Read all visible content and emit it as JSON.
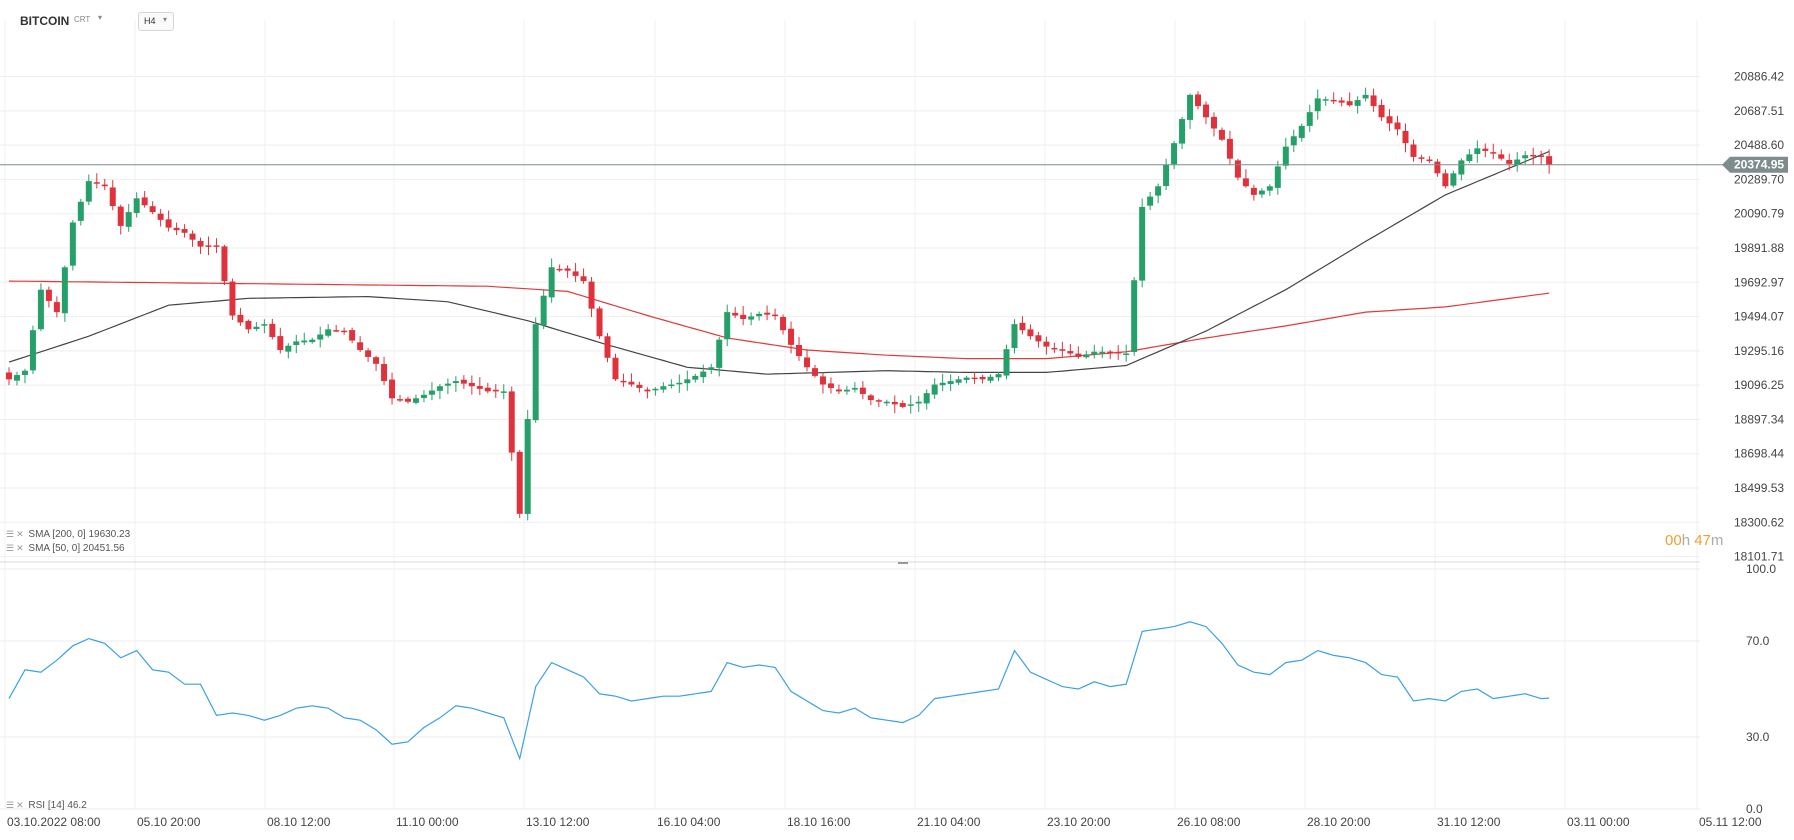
{
  "header": {
    "symbol": "BITCOIN",
    "subtitle": "CRT",
    "timeframe": "H4"
  },
  "indicators": {
    "sma200_label": "SMA [200, 0] 19630.23",
    "sma50_label": "SMA [50, 0] 20451.56",
    "rsi_label": "RSI [14] 46.2"
  },
  "timer": {
    "hours": "00",
    "hours_unit": "h",
    "minutes": "47",
    "minutes_unit": "m"
  },
  "colors": {
    "up": "#26a069",
    "down": "#e0323c",
    "sma200": "#e03a3a",
    "sma50": "#444444",
    "rsi": "#3aa0e8",
    "price_line": "#7f8c8d",
    "price_tag": "#7f8c8d"
  },
  "chart_data": [
    {
      "type": "candlestick",
      "title": "",
      "current_price": 20374.95,
      "current_price_label": "20374.95",
      "y_ticks": [
        "20886.42",
        "20687.51",
        "20488.60",
        "20289.70",
        "20090.79",
        "19891.88",
        "19692.97",
        "19494.07",
        "19295.16",
        "19096.25",
        "18897.34",
        "18698.44",
        "18499.53",
        "18300.62",
        "18101.71"
      ],
      "x_ticks": [
        "03.10.2022  08:00",
        "05.10  20:00",
        "08.10  12:00",
        "11.10  00:00",
        "13.10  12:00",
        "16.10  04:00",
        "18.10  16:00",
        "21.10  04:00",
        "23.10  20:00",
        "26.10  08:00",
        "28.10  20:00",
        "31.10  12:00",
        "03.11  00:00",
        "05.11  12:00"
      ],
      "ylim": [
        18101.71,
        20985.88
      ],
      "anchors": [
        {
          "i": 0,
          "p": 19130
        },
        {
          "i": 2,
          "p": 19180
        },
        {
          "i": 4,
          "p": 19650
        },
        {
          "i": 6,
          "p": 19520
        },
        {
          "i": 8,
          "p": 20040
        },
        {
          "i": 10,
          "p": 20280
        },
        {
          "i": 12,
          "p": 20250
        },
        {
          "i": 14,
          "p": 20020
        },
        {
          "i": 16,
          "p": 20180
        },
        {
          "i": 18,
          "p": 20100
        },
        {
          "i": 20,
          "p": 20010
        },
        {
          "i": 22,
          "p": 19980
        },
        {
          "i": 24,
          "p": 19900
        },
        {
          "i": 26,
          "p": 19900
        },
        {
          "i": 28,
          "p": 19500
        },
        {
          "i": 30,
          "p": 19420
        },
        {
          "i": 32,
          "p": 19450
        },
        {
          "i": 34,
          "p": 19300
        },
        {
          "i": 36,
          "p": 19350
        },
        {
          "i": 38,
          "p": 19360
        },
        {
          "i": 40,
          "p": 19420
        },
        {
          "i": 42,
          "p": 19410
        },
        {
          "i": 44,
          "p": 19300
        },
        {
          "i": 46,
          "p": 19220
        },
        {
          "i": 48,
          "p": 19020
        },
        {
          "i": 50,
          "p": 19000
        },
        {
          "i": 52,
          "p": 19040
        },
        {
          "i": 54,
          "p": 19090
        },
        {
          "i": 56,
          "p": 19120
        },
        {
          "i": 58,
          "p": 19090
        },
        {
          "i": 60,
          "p": 19060
        },
        {
          "i": 62,
          "p": 19060
        },
        {
          "i": 64,
          "p": 18350
        },
        {
          "i": 66,
          "p": 19450
        },
        {
          "i": 68,
          "p": 19780
        },
        {
          "i": 70,
          "p": 19760
        },
        {
          "i": 72,
          "p": 19700
        },
        {
          "i": 74,
          "p": 19380
        },
        {
          "i": 76,
          "p": 19130
        },
        {
          "i": 78,
          "p": 19100
        },
        {
          "i": 80,
          "p": 19060
        },
        {
          "i": 82,
          "p": 19090
        },
        {
          "i": 84,
          "p": 19110
        },
        {
          "i": 86,
          "p": 19150
        },
        {
          "i": 88,
          "p": 19200
        },
        {
          "i": 90,
          "p": 19520
        },
        {
          "i": 92,
          "p": 19480
        },
        {
          "i": 94,
          "p": 19510
        },
        {
          "i": 96,
          "p": 19500
        },
        {
          "i": 98,
          "p": 19330
        },
        {
          "i": 100,
          "p": 19200
        },
        {
          "i": 102,
          "p": 19100
        },
        {
          "i": 104,
          "p": 19060
        },
        {
          "i": 106,
          "p": 19080
        },
        {
          "i": 108,
          "p": 19010
        },
        {
          "i": 110,
          "p": 19000
        },
        {
          "i": 112,
          "p": 18970
        },
        {
          "i": 114,
          "p": 19000
        },
        {
          "i": 116,
          "p": 19100
        },
        {
          "i": 118,
          "p": 19120
        },
        {
          "i": 120,
          "p": 19140
        },
        {
          "i": 122,
          "p": 19130
        },
        {
          "i": 124,
          "p": 19160
        },
        {
          "i": 126,
          "p": 19450
        },
        {
          "i": 128,
          "p": 19380
        },
        {
          "i": 130,
          "p": 19320
        },
        {
          "i": 132,
          "p": 19300
        },
        {
          "i": 134,
          "p": 19260
        },
        {
          "i": 136,
          "p": 19290
        },
        {
          "i": 138,
          "p": 19290
        },
        {
          "i": 140,
          "p": 19280
        },
        {
          "i": 142,
          "p": 20130
        },
        {
          "i": 144,
          "p": 20250
        },
        {
          "i": 146,
          "p": 20500
        },
        {
          "i": 148,
          "p": 20780
        },
        {
          "i": 150,
          "p": 20650
        },
        {
          "i": 152,
          "p": 20520
        },
        {
          "i": 154,
          "p": 20300
        },
        {
          "i": 156,
          "p": 20200
        },
        {
          "i": 158,
          "p": 20250
        },
        {
          "i": 160,
          "p": 20480
        },
        {
          "i": 162,
          "p": 20600
        },
        {
          "i": 164,
          "p": 20760
        },
        {
          "i": 166,
          "p": 20750
        },
        {
          "i": 168,
          "p": 20720
        },
        {
          "i": 170,
          "p": 20780
        },
        {
          "i": 172,
          "p": 20650
        },
        {
          "i": 174,
          "p": 20580
        },
        {
          "i": 176,
          "p": 20420
        },
        {
          "i": 178,
          "p": 20400
        },
        {
          "i": 180,
          "p": 20250
        },
        {
          "i": 182,
          "p": 20400
        },
        {
          "i": 184,
          "p": 20470
        },
        {
          "i": 186,
          "p": 20440
        },
        {
          "i": 188,
          "p": 20380
        },
        {
          "i": 190,
          "p": 20430
        },
        {
          "i": 192,
          "p": 20420
        },
        {
          "i": 193,
          "p": 20374.95
        }
      ],
      "sma200_anchors": [
        {
          "i": 0,
          "p": 19700
        },
        {
          "i": 20,
          "p": 19690
        },
        {
          "i": 40,
          "p": 19680
        },
        {
          "i": 60,
          "p": 19670
        },
        {
          "i": 70,
          "p": 19640
        },
        {
          "i": 80,
          "p": 19500
        },
        {
          "i": 90,
          "p": 19370
        },
        {
          "i": 100,
          "p": 19300
        },
        {
          "i": 110,
          "p": 19270
        },
        {
          "i": 120,
          "p": 19250
        },
        {
          "i": 130,
          "p": 19250
        },
        {
          "i": 140,
          "p": 19290
        },
        {
          "i": 150,
          "p": 19370
        },
        {
          "i": 160,
          "p": 19440
        },
        {
          "i": 170,
          "p": 19520
        },
        {
          "i": 180,
          "p": 19550
        },
        {
          "i": 193,
          "p": 19630.23
        }
      ],
      "sma50_anchors": [
        {
          "i": 0,
          "p": 19230
        },
        {
          "i": 10,
          "p": 19380
        },
        {
          "i": 20,
          "p": 19560
        },
        {
          "i": 30,
          "p": 19600
        },
        {
          "i": 45,
          "p": 19610
        },
        {
          "i": 55,
          "p": 19580
        },
        {
          "i": 65,
          "p": 19470
        },
        {
          "i": 75,
          "p": 19330
        },
        {
          "i": 85,
          "p": 19200
        },
        {
          "i": 95,
          "p": 19160
        },
        {
          "i": 110,
          "p": 19180
        },
        {
          "i": 120,
          "p": 19170
        },
        {
          "i": 130,
          "p": 19170
        },
        {
          "i": 140,
          "p": 19210
        },
        {
          "i": 150,
          "p": 19410
        },
        {
          "i": 160,
          "p": 19650
        },
        {
          "i": 170,
          "p": 19930
        },
        {
          "i": 180,
          "p": 20200
        },
        {
          "i": 193,
          "p": 20451.56
        }
      ]
    },
    {
      "type": "line",
      "name": "RSI [14]",
      "y_ticks": [
        "100.0",
        "70.0",
        "30.0",
        "0.0"
      ],
      "ylim": [
        0,
        100
      ],
      "anchors": [
        {
          "i": 0,
          "p": 46
        },
        {
          "i": 2,
          "p": 58
        },
        {
          "i": 4,
          "p": 57
        },
        {
          "i": 6,
          "p": 62
        },
        {
          "i": 8,
          "p": 68
        },
        {
          "i": 10,
          "p": 71
        },
        {
          "i": 12,
          "p": 69
        },
        {
          "i": 14,
          "p": 63
        },
        {
          "i": 16,
          "p": 66
        },
        {
          "i": 18,
          "p": 58
        },
        {
          "i": 20,
          "p": 57
        },
        {
          "i": 22,
          "p": 52
        },
        {
          "i": 24,
          "p": 52
        },
        {
          "i": 26,
          "p": 39
        },
        {
          "i": 28,
          "p": 40
        },
        {
          "i": 30,
          "p": 39
        },
        {
          "i": 32,
          "p": 37
        },
        {
          "i": 34,
          "p": 39
        },
        {
          "i": 36,
          "p": 42
        },
        {
          "i": 38,
          "p": 43
        },
        {
          "i": 40,
          "p": 42
        },
        {
          "i": 42,
          "p": 38
        },
        {
          "i": 44,
          "p": 37
        },
        {
          "i": 46,
          "p": 33
        },
        {
          "i": 48,
          "p": 27
        },
        {
          "i": 50,
          "p": 28
        },
        {
          "i": 52,
          "p": 34
        },
        {
          "i": 54,
          "p": 38
        },
        {
          "i": 56,
          "p": 43
        },
        {
          "i": 58,
          "p": 42
        },
        {
          "i": 60,
          "p": 40
        },
        {
          "i": 62,
          "p": 38
        },
        {
          "i": 64,
          "p": 21
        },
        {
          "i": 66,
          "p": 51
        },
        {
          "i": 68,
          "p": 61
        },
        {
          "i": 70,
          "p": 58
        },
        {
          "i": 72,
          "p": 55
        },
        {
          "i": 74,
          "p": 48
        },
        {
          "i": 76,
          "p": 47
        },
        {
          "i": 78,
          "p": 45
        },
        {
          "i": 80,
          "p": 46
        },
        {
          "i": 82,
          "p": 47
        },
        {
          "i": 84,
          "p": 47
        },
        {
          "i": 86,
          "p": 48
        },
        {
          "i": 88,
          "p": 49
        },
        {
          "i": 90,
          "p": 61
        },
        {
          "i": 92,
          "p": 59
        },
        {
          "i": 94,
          "p": 60
        },
        {
          "i": 96,
          "p": 59
        },
        {
          "i": 98,
          "p": 49
        },
        {
          "i": 100,
          "p": 45
        },
        {
          "i": 102,
          "p": 41
        },
        {
          "i": 104,
          "p": 40
        },
        {
          "i": 106,
          "p": 42
        },
        {
          "i": 108,
          "p": 38
        },
        {
          "i": 110,
          "p": 37
        },
        {
          "i": 112,
          "p": 36
        },
        {
          "i": 114,
          "p": 39
        },
        {
          "i": 116,
          "p": 46
        },
        {
          "i": 118,
          "p": 47
        },
        {
          "i": 120,
          "p": 48
        },
        {
          "i": 122,
          "p": 49
        },
        {
          "i": 124,
          "p": 50
        },
        {
          "i": 126,
          "p": 66
        },
        {
          "i": 128,
          "p": 57
        },
        {
          "i": 130,
          "p": 54
        },
        {
          "i": 132,
          "p": 51
        },
        {
          "i": 134,
          "p": 50
        },
        {
          "i": 136,
          "p": 53
        },
        {
          "i": 138,
          "p": 51
        },
        {
          "i": 140,
          "p": 52
        },
        {
          "i": 142,
          "p": 74
        },
        {
          "i": 144,
          "p": 75
        },
        {
          "i": 146,
          "p": 76
        },
        {
          "i": 148,
          "p": 78
        },
        {
          "i": 150,
          "p": 76
        },
        {
          "i": 152,
          "p": 69
        },
        {
          "i": 154,
          "p": 60
        },
        {
          "i": 156,
          "p": 57
        },
        {
          "i": 158,
          "p": 56
        },
        {
          "i": 160,
          "p": 61
        },
        {
          "i": 162,
          "p": 62
        },
        {
          "i": 164,
          "p": 66
        },
        {
          "i": 166,
          "p": 64
        },
        {
          "i": 168,
          "p": 63
        },
        {
          "i": 170,
          "p": 61
        },
        {
          "i": 172,
          "p": 56
        },
        {
          "i": 174,
          "p": 55
        },
        {
          "i": 176,
          "p": 45
        },
        {
          "i": 178,
          "p": 46
        },
        {
          "i": 180,
          "p": 45
        },
        {
          "i": 182,
          "p": 49
        },
        {
          "i": 184,
          "p": 50
        },
        {
          "i": 186,
          "p": 46
        },
        {
          "i": 188,
          "p": 47
        },
        {
          "i": 190,
          "p": 48
        },
        {
          "i": 192,
          "p": 46
        },
        {
          "i": 193,
          "p": 46.2
        }
      ]
    }
  ]
}
